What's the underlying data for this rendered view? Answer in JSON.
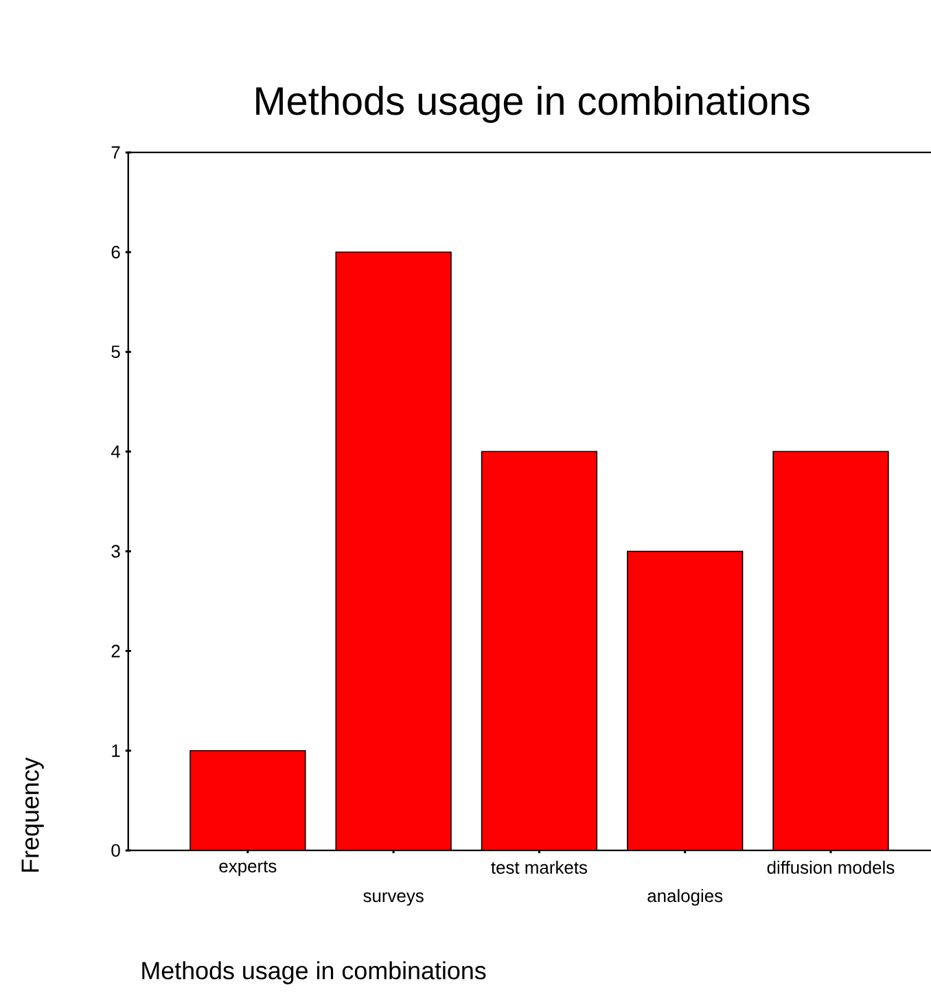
{
  "chart_data": {
    "type": "bar",
    "title": "Methods usage in combinations",
    "xlabel": "Methods usage in combinations",
    "ylabel": "Frequency",
    "categories": [
      "experts",
      "surveys",
      "test markets",
      "analogies",
      "diffusion models"
    ],
    "values": [
      1,
      6,
      4,
      3,
      4
    ],
    "color": "#ff0000",
    "ylim": [
      0,
      7
    ],
    "yticks": [
      0,
      1,
      2,
      3,
      4,
      5,
      6,
      7
    ],
    "grid": false
  }
}
